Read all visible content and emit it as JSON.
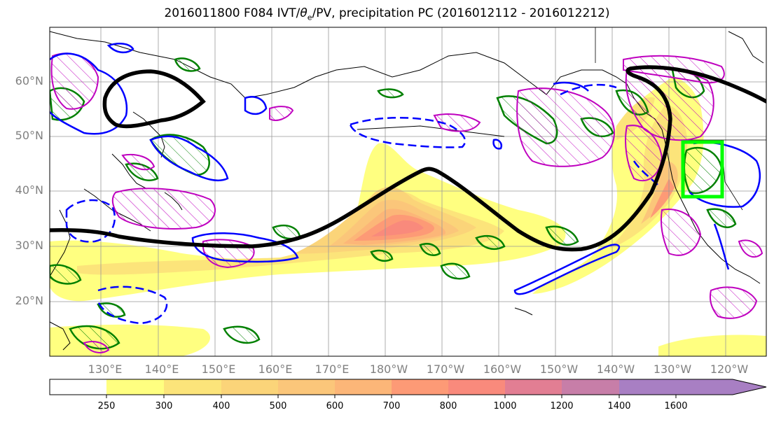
{
  "title_pre": "2016011800 F084 IVT/",
  "title_theta": "θ",
  "title_sub": "e",
  "title_post": "/PV, precipitation PC (2016012112 - 2016012212)",
  "lat_labels": [
    "60°N",
    "50°N",
    "40°N",
    "30°N",
    "20°N"
  ],
  "lon_labels": [
    "130°E",
    "140°E",
    "150°E",
    "160°E",
    "170°E",
    "180°W",
    "170°W",
    "160°W",
    "150°W",
    "140°W",
    "130°W",
    "120°W"
  ],
  "colorbar": {
    "ticks": [
      "250",
      "300",
      "400",
      "500",
      "600",
      "700",
      "800",
      "1000",
      "1200",
      "1400",
      "1600"
    ],
    "colors": [
      "#ffff80",
      "#fce47a",
      "#fbd479",
      "#fbc67a",
      "#fcb678",
      "#fd9a76",
      "#f98a7c",
      "#e27e93",
      "#c77ea8",
      "#a87fc3"
    ]
  },
  "legend_colors": {
    "black_contour": "#000000",
    "ivt_positive": "#0000ff",
    "pv_green": "#008000",
    "pv_magenta": "#bf00bf",
    "box": "#00ff00"
  }
}
